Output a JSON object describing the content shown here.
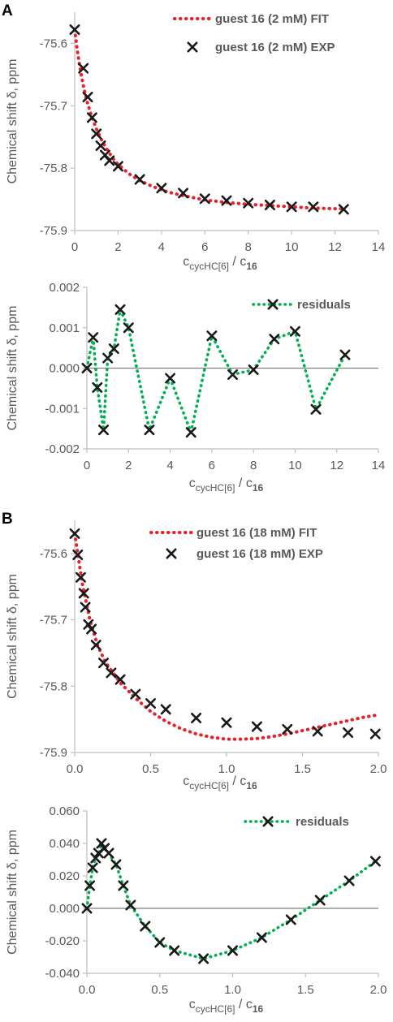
{
  "panels": [
    {
      "letter": "A"
    },
    {
      "letter": "B"
    }
  ],
  "colors": {
    "fit": "#e8202a",
    "residual": "#00b050",
    "marker": "#1a1a1a",
    "axis": "#bfbfbf",
    "zero": "#7f7f7f",
    "text": "#595959"
  },
  "chart_data": [
    {
      "id": "A-top",
      "type": "scatter",
      "xlabel": {
        "main": "c",
        "sub1": "cycHC[6]",
        "mid": " / c",
        "sub2": "16"
      },
      "ylabel": "Chemical shift δ, ppm",
      "xlim": [
        0,
        14
      ],
      "ylim": [
        -75.9,
        -75.55
      ],
      "xticks": [
        0,
        2,
        4,
        6,
        8,
        10,
        12,
        14
      ],
      "xtick_labels": [
        "0",
        "2",
        "4",
        "6",
        "8",
        "10",
        "12",
        "14"
      ],
      "yticks": [
        -75.9,
        -75.8,
        -75.7,
        -75.6
      ],
      "ytick_labels": [
        "-75.9",
        "-75.8",
        "-75.7",
        "-75.6"
      ],
      "grid": false,
      "legend_position": "top-right",
      "series": [
        {
          "name": "guest 16 (2 mM) FIT",
          "kind": "fit",
          "style": "dotted-line",
          "color": "#e8202a",
          "x": [
            0,
            0.1,
            0.2,
            0.3,
            0.4,
            0.5,
            0.6,
            0.8,
            1.0,
            1.2,
            1.4,
            1.6,
            1.8,
            2.0,
            2.5,
            3,
            3.5,
            4,
            4.5,
            5,
            6,
            7,
            8,
            9,
            10,
            11,
            12,
            12.4
          ],
          "y": [
            -75.578,
            -75.606,
            -75.63,
            -75.65,
            -75.668,
            -75.683,
            -75.697,
            -75.719,
            -75.737,
            -75.752,
            -75.765,
            -75.776,
            -75.786,
            -75.794,
            -75.809,
            -75.82,
            -75.828,
            -75.835,
            -75.84,
            -75.844,
            -75.851,
            -75.855,
            -75.858,
            -75.86,
            -75.862,
            -75.864,
            -75.865,
            -75.865
          ]
        },
        {
          "name": "guest 16 (2 mM) EXP",
          "kind": "exp",
          "style": "x-marker",
          "color": "#1a1a1a",
          "x": [
            0,
            0.4,
            0.6,
            0.8,
            1.0,
            1.2,
            1.4,
            1.6,
            2.0,
            3,
            4,
            5,
            6,
            7,
            8,
            9,
            10,
            11,
            12.4
          ],
          "y": [
            -75.578,
            -75.64,
            -75.686,
            -75.719,
            -75.745,
            -75.764,
            -75.779,
            -75.788,
            -75.797,
            -75.818,
            -75.832,
            -75.84,
            -75.849,
            -75.852,
            -75.856,
            -75.859,
            -75.862,
            -75.862,
            -75.866
          ]
        }
      ]
    },
    {
      "id": "A-bottom",
      "type": "line",
      "xlabel": {
        "main": "c",
        "sub1": "cycHC[6]",
        "mid": " / c",
        "sub2": "16"
      },
      "ylabel": "Chemical shift δ, ppm",
      "xlim": [
        0,
        14
      ],
      "ylim": [
        -0.002,
        0.002
      ],
      "xticks": [
        0,
        2,
        4,
        6,
        8,
        10,
        12,
        14
      ],
      "xtick_labels": [
        "0",
        "2",
        "4",
        "6",
        "8",
        "10",
        "12",
        "14"
      ],
      "yticks": [
        -0.002,
        -0.001,
        0.0,
        0.001,
        0.002
      ],
      "ytick_labels": [
        "-0.002",
        "-0.001",
        "0.000",
        "0.001",
        "0.002"
      ],
      "grid": false,
      "zero_line": true,
      "legend_position": "top-right",
      "series": [
        {
          "name": "residuals",
          "kind": "residual",
          "style": "dotted-line-x-marker",
          "color": "#00b050",
          "x": [
            0,
            0.3,
            0.5,
            0.8,
            1.0,
            1.3,
            1.6,
            2.0,
            3,
            4,
            5,
            6,
            7,
            8,
            9,
            10,
            11,
            12.4
          ],
          "y": [
            0.0,
            0.00076,
            -0.00048,
            -0.00153,
            0.00025,
            0.00048,
            0.00145,
            0.001,
            -0.00153,
            -0.00025,
            -0.00159,
            0.0008,
            -0.00016,
            -4e-05,
            0.00072,
            0.00091,
            -0.00102,
            0.00033
          ]
        }
      ]
    },
    {
      "id": "B-top",
      "type": "scatter",
      "xlabel": {
        "main": "c",
        "sub1": "cycHC[6]",
        "mid": " / c",
        "sub2": "16"
      },
      "ylabel": "Chemical shift δ, ppm",
      "xlim": [
        0,
        2.0
      ],
      "ylim": [
        -75.9,
        -75.55
      ],
      "xticks": [
        0,
        0.5,
        1.0,
        1.5,
        2.0
      ],
      "xtick_labels": [
        "0.0",
        "0.5",
        "1.0",
        "1.5",
        "2.0"
      ],
      "yticks": [
        -75.9,
        -75.8,
        -75.7,
        -75.6
      ],
      "ytick_labels": [
        "-75.9",
        "-75.8",
        "-75.7",
        "-75.6"
      ],
      "grid": false,
      "legend_position": "top-right",
      "series": [
        {
          "name": "guest 16 (18 mM) FIT",
          "kind": "fit",
          "style": "dotted-line",
          "color": "#e8202a",
          "x": [
            0,
            0.05,
            0.1,
            0.15,
            0.2,
            0.3,
            0.4,
            0.5,
            0.6,
            0.7,
            0.8,
            0.9,
            1.0,
            1.1,
            1.2,
            1.3,
            1.4,
            1.5,
            1.6,
            1.7,
            1.8,
            1.9,
            1.98
          ],
          "y": [
            -75.57,
            -75.645,
            -75.7,
            -75.738,
            -75.763,
            -75.795,
            -75.818,
            -75.838,
            -75.853,
            -75.864,
            -75.872,
            -75.877,
            -75.88,
            -75.88,
            -75.879,
            -75.876,
            -75.872,
            -75.867,
            -75.862,
            -75.857,
            -75.852,
            -75.847,
            -75.844
          ]
        },
        {
          "name": "guest 16 (18 mM) EXP",
          "kind": "exp",
          "style": "x-marker",
          "color": "#1a1a1a",
          "x": [
            0,
            0.02,
            0.04,
            0.06,
            0.07,
            0.09,
            0.11,
            0.14,
            0.19,
            0.24,
            0.3,
            0.4,
            0.5,
            0.6,
            0.8,
            1.0,
            1.2,
            1.4,
            1.6,
            1.8,
            1.98
          ],
          "y": [
            -75.57,
            -75.602,
            -75.636,
            -75.66,
            -75.681,
            -75.707,
            -75.714,
            -75.738,
            -75.765,
            -75.78,
            -75.79,
            -75.812,
            -75.826,
            -75.835,
            -75.848,
            -75.855,
            -75.861,
            -75.865,
            -75.868,
            -75.87,
            -75.872
          ]
        }
      ]
    },
    {
      "id": "B-bottom",
      "type": "line",
      "xlabel": {
        "main": "c",
        "sub1": "cycHC[6]",
        "mid": " / c",
        "sub2": "16"
      },
      "ylabel": "Chemical shift δ, ppm",
      "xlim": [
        0,
        2.0
      ],
      "ylim": [
        -0.04,
        0.06
      ],
      "xticks": [
        0,
        0.5,
        1.0,
        1.5,
        2.0
      ],
      "xtick_labels": [
        "0.0",
        "0.5",
        "1.0",
        "1.5",
        "2.0"
      ],
      "yticks": [
        -0.04,
        -0.02,
        0.0,
        0.02,
        0.04,
        0.06
      ],
      "ytick_labels": [
        "-0.040",
        "-0.020",
        "0.000",
        "0.020",
        "0.040",
        "0.060"
      ],
      "grid": false,
      "zero_line": true,
      "legend_position": "top-right",
      "series": [
        {
          "name": "residuals",
          "kind": "residual",
          "style": "dotted-line-x-marker",
          "color": "#00b050",
          "x": [
            0,
            0.02,
            0.04,
            0.06,
            0.08,
            0.1,
            0.12,
            0.15,
            0.2,
            0.25,
            0.3,
            0.4,
            0.5,
            0.6,
            0.8,
            1.0,
            1.2,
            1.4,
            1.6,
            1.8,
            1.98
          ],
          "y": [
            0.0,
            0.014,
            0.025,
            0.031,
            0.034,
            0.04,
            0.037,
            0.034,
            0.027,
            0.014,
            0.002,
            -0.011,
            -0.021,
            -0.026,
            -0.031,
            -0.026,
            -0.018,
            -0.007,
            0.005,
            0.017,
            0.029
          ]
        }
      ]
    }
  ]
}
